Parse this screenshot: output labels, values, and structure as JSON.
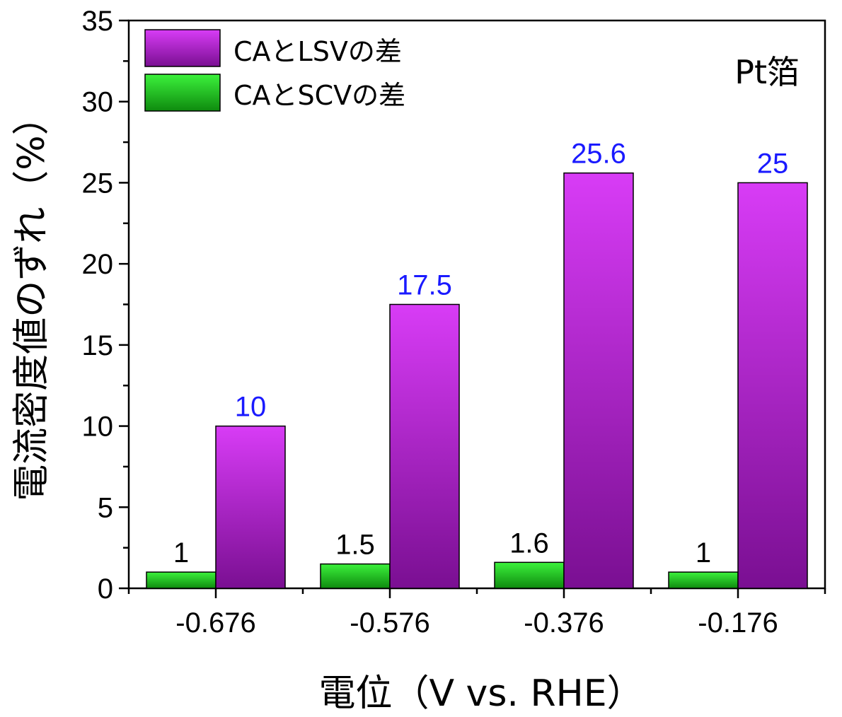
{
  "chart_data": {
    "type": "bar",
    "categories": [
      "-0.676",
      "-0.576",
      "-0.376",
      "-0.176"
    ],
    "series": [
      {
        "name": "CAとSCVの差",
        "values": [
          1,
          1.5,
          1.6,
          1
        ],
        "labels": [
          "1",
          "1.5",
          "1.6",
          "1"
        ],
        "color": "#22cc22",
        "label_color": "#000000"
      },
      {
        "name": "CAとLSVの差",
        "values": [
          10,
          17.5,
          25.6,
          25
        ],
        "labels": [
          "10",
          "17.5",
          "25.6",
          "25"
        ],
        "color": "#cc33ee",
        "label_color": "#1a1aff"
      }
    ],
    "legend_order": [
      1,
      0
    ],
    "legend_position": "top-left",
    "annotation": "Pt箔",
    "xlabel": "電位（V vs. RHE）",
    "ylabel": "電流密度値のずれ（%）",
    "ylim": [
      0,
      35
    ],
    "yticks": [
      "0",
      "5",
      "10",
      "15",
      "20",
      "25",
      "30",
      "35"
    ],
    "grid": false
  }
}
